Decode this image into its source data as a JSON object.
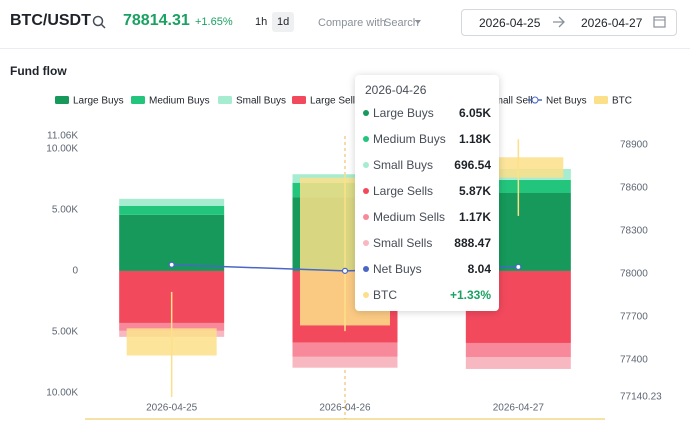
{
  "header": {
    "pair": "BTC/USDT",
    "price": "78814.31",
    "change": "+1.65%",
    "intervals": [
      "1h",
      "1d"
    ],
    "compare": "Compare with",
    "search": "Search",
    "date_from": "2026-04-25",
    "date_to": "2026-04-27"
  },
  "chart_data": {
    "type": "bar",
    "title": "Fund flow",
    "categories": [
      "2026-04-25",
      "2026-04-26",
      "2026-04-27"
    ],
    "series": [
      {
        "name": "Large Buys",
        "type": "bar",
        "color": "#16995b",
        "values": [
          4600,
          6050,
          6390
        ]
      },
      {
        "name": "Medium Buys",
        "type": "bar",
        "color": "#23c47b",
        "values": [
          740,
          1180,
          1070
        ]
      },
      {
        "name": "Small Buys",
        "type": "bar",
        "color": "#a5ecd1",
        "values": [
          570,
          696.54,
          900
        ]
      },
      {
        "name": "Large Sells",
        "type": "bar",
        "color": "#f2495d",
        "values": [
          -4260,
          -5870,
          -5900
        ]
      },
      {
        "name": "Medium Sells",
        "type": "bar",
        "color": "#f7899a",
        "values": [
          -650,
          -1170,
          -1150
        ]
      },
      {
        "name": "Small Sells",
        "type": "bar",
        "color": "#f8b8c2",
        "values": [
          -490,
          -888.47,
          -980
        ]
      },
      {
        "name": "Net Buys",
        "type": "line",
        "color": "#4a67c6",
        "values": [
          510,
          8.04,
          330
        ]
      },
      {
        "name": "BTC",
        "type": "candlestick",
        "axis": "y2",
        "color": "#fbe089",
        "open": [
          77620,
          77640,
          78672
        ],
        "high": [
          77874,
          78700,
          78940
        ],
        "low": [
          77140.23,
          77600,
          78405
        ],
        "close": [
          77430,
          78672,
          78814.31
        ]
      }
    ],
    "ylim": [
      -10000,
      11060
    ],
    "yticks": [
      {
        "value": 11060,
        "label": "11.06K"
      },
      {
        "value": 10000,
        "label": "10.00K"
      },
      {
        "value": 5000,
        "label": "5.00K"
      },
      0,
      {
        "value": -5000,
        "label": "5.00K"
      },
      {
        "value": -10000,
        "label": "10.00K"
      }
    ],
    "y2lim": [
      77140.23,
      78963
    ],
    "y2ticks": [
      78900,
      78600,
      78300,
      78000,
      77700,
      77400,
      77140.23
    ]
  },
  "tooltip": {
    "date": "2026-04-26",
    "rows": [
      {
        "name": "Large Buys",
        "value": "6.05K"
      },
      {
        "name": "Medium Buys",
        "value": "1.18K"
      },
      {
        "name": "Small Buys",
        "value": "696.54"
      },
      {
        "name": "Large Sells",
        "value": "5.87K"
      },
      {
        "name": "Medium Sells",
        "value": "1.17K"
      },
      {
        "name": "Small Sells",
        "value": "888.47"
      },
      {
        "name": "Net Buys",
        "value": "8.04"
      },
      {
        "name": "BTC",
        "value": "+1.33%"
      }
    ]
  }
}
